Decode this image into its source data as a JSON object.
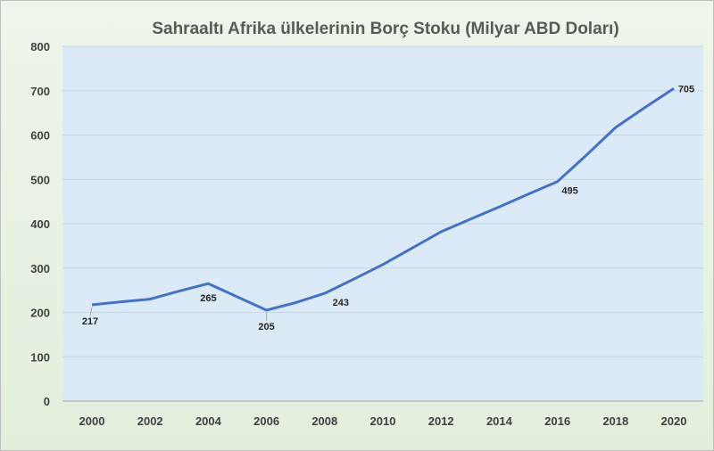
{
  "chart_data": {
    "type": "line",
    "title": "Sahraaltı Afrika ülkelerinin Borç Stoku (Milyar ABD Doları)",
    "xlabel": "",
    "ylabel": "",
    "x": [
      2000,
      2001,
      2002,
      2003,
      2004,
      2005,
      2006,
      2007,
      2008,
      2009,
      2010,
      2011,
      2012,
      2013,
      2014,
      2015,
      2016,
      2017,
      2018,
      2019,
      2020
    ],
    "series": [
      {
        "values": [
          217,
          224,
          230,
          248,
          265,
          235,
          205,
          222,
          243,
          275,
          308,
          345,
          382,
          410,
          438,
          467,
          495,
          555,
          617,
          662,
          705
        ]
      }
    ],
    "x_ticks": [
      "2000",
      "2002",
      "2004",
      "2006",
      "2008",
      "2010",
      "2012",
      "2014",
      "2016",
      "2018",
      "2020"
    ],
    "y_ticks": [
      "0",
      "100",
      "200",
      "300",
      "400",
      "500",
      "600",
      "700",
      "800"
    ],
    "ylim": [
      0,
      800
    ],
    "xlim": [
      2000,
      2020
    ],
    "grid": true,
    "line_color": "#4472c4",
    "plot_background": "#dce9f7",
    "data_labels": [
      {
        "x": 2000,
        "text": "217"
      },
      {
        "x": 2004,
        "text": "265"
      },
      {
        "x": 2006,
        "text": "205"
      },
      {
        "x": 2008,
        "text": "243"
      },
      {
        "x": 2016,
        "text": "495"
      },
      {
        "x": 2020,
        "text": "705"
      }
    ]
  }
}
